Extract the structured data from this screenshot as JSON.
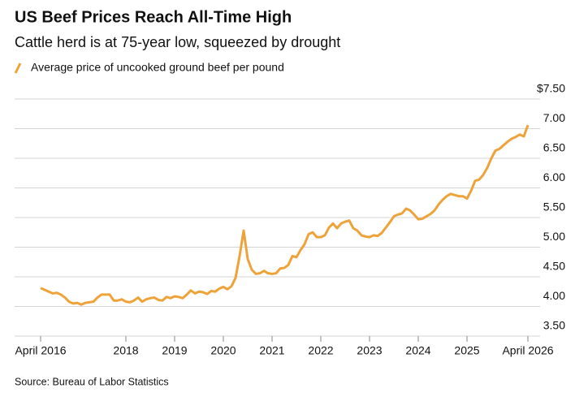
{
  "chart_data": {
    "type": "line",
    "title": "US Beef Prices Reach All-Time High",
    "subtitle": "Cattle herd is at 75-year low, squeezed by drought",
    "source": "Source: Bureau of Labor Statistics",
    "categories": [
      "April 2016",
      null,
      null,
      null,
      null,
      null,
      null,
      null,
      null,
      null,
      null,
      null,
      null,
      null,
      null,
      null,
      null,
      null,
      null,
      null,
      null,
      "2018",
      null,
      null,
      null,
      null,
      null,
      null,
      null,
      null,
      null,
      null,
      null,
      "2019",
      null,
      null,
      null,
      null,
      null,
      null,
      null,
      null,
      null,
      null,
      null,
      "2020",
      null,
      null,
      null,
      null,
      null,
      null,
      null,
      null,
      null,
      null,
      null,
      "2021",
      null,
      null,
      null,
      null,
      null,
      null,
      null,
      null,
      null,
      null,
      null,
      "2022",
      null,
      null,
      null,
      null,
      null,
      null,
      null,
      null,
      null,
      null,
      null,
      "2023",
      null,
      null,
      null,
      null,
      null,
      null,
      null,
      null,
      null,
      null,
      null,
      "2024",
      null,
      null,
      null,
      null,
      null,
      null,
      null,
      null,
      null,
      null,
      null,
      "2025",
      null,
      null,
      null,
      null,
      null,
      null,
      null,
      null,
      null,
      null,
      null,
      null,
      null,
      null,
      "April 2026"
    ],
    "series": [
      {
        "name": "Average price of uncooked ground beef per pound",
        "color": "#eea33a",
        "values": [
          4.31,
          4.28,
          4.25,
          4.22,
          4.23,
          4.2,
          4.15,
          4.08,
          4.05,
          4.06,
          4.03,
          4.06,
          4.07,
          4.08,
          4.15,
          4.2,
          4.2,
          4.2,
          4.1,
          4.1,
          4.12,
          4.08,
          4.07,
          4.1,
          4.15,
          4.08,
          4.12,
          4.14,
          4.15,
          4.11,
          4.1,
          4.16,
          4.14,
          4.17,
          4.16,
          4.14,
          4.2,
          4.27,
          4.22,
          4.25,
          4.24,
          4.21,
          4.26,
          4.25,
          4.3,
          4.33,
          4.29,
          4.34,
          4.48,
          4.85,
          5.28,
          4.8,
          4.62,
          4.55,
          4.56,
          4.6,
          4.56,
          4.55,
          4.56,
          4.64,
          4.65,
          4.7,
          4.85,
          4.83,
          4.95,
          5.05,
          5.22,
          5.25,
          5.17,
          5.17,
          5.2,
          5.33,
          5.4,
          5.32,
          5.4,
          5.43,
          5.45,
          5.32,
          5.28,
          5.2,
          5.18,
          5.17,
          5.2,
          5.19,
          5.24,
          5.33,
          5.42,
          5.52,
          5.55,
          5.57,
          5.65,
          5.62,
          5.55,
          5.47,
          5.48,
          5.52,
          5.56,
          5.62,
          5.72,
          5.8,
          5.86,
          5.9,
          5.88,
          5.86,
          5.86,
          5.82,
          5.95,
          6.12,
          6.14,
          6.22,
          6.34,
          6.5,
          6.63,
          6.66,
          6.72,
          6.78,
          6.83,
          6.86,
          6.9,
          6.87,
          7.06
        ]
      }
    ],
    "ylim": [
      3.5,
      7.5
    ],
    "yticks": [
      {
        "value": 3.5,
        "label": "3.50"
      },
      {
        "value": 4,
        "label": "4.00"
      },
      {
        "value": 4.5,
        "label": "4.50"
      },
      {
        "value": 5,
        "label": "5.00"
      },
      {
        "value": 5.5,
        "label": "5.50"
      },
      {
        "value": 6,
        "label": "6.00"
      },
      {
        "value": 6.5,
        "label": "6.50"
      },
      {
        "value": 7,
        "label": "7.00"
      },
      {
        "value": 7.5,
        "label": "$7.50"
      }
    ],
    "grid": true
  }
}
